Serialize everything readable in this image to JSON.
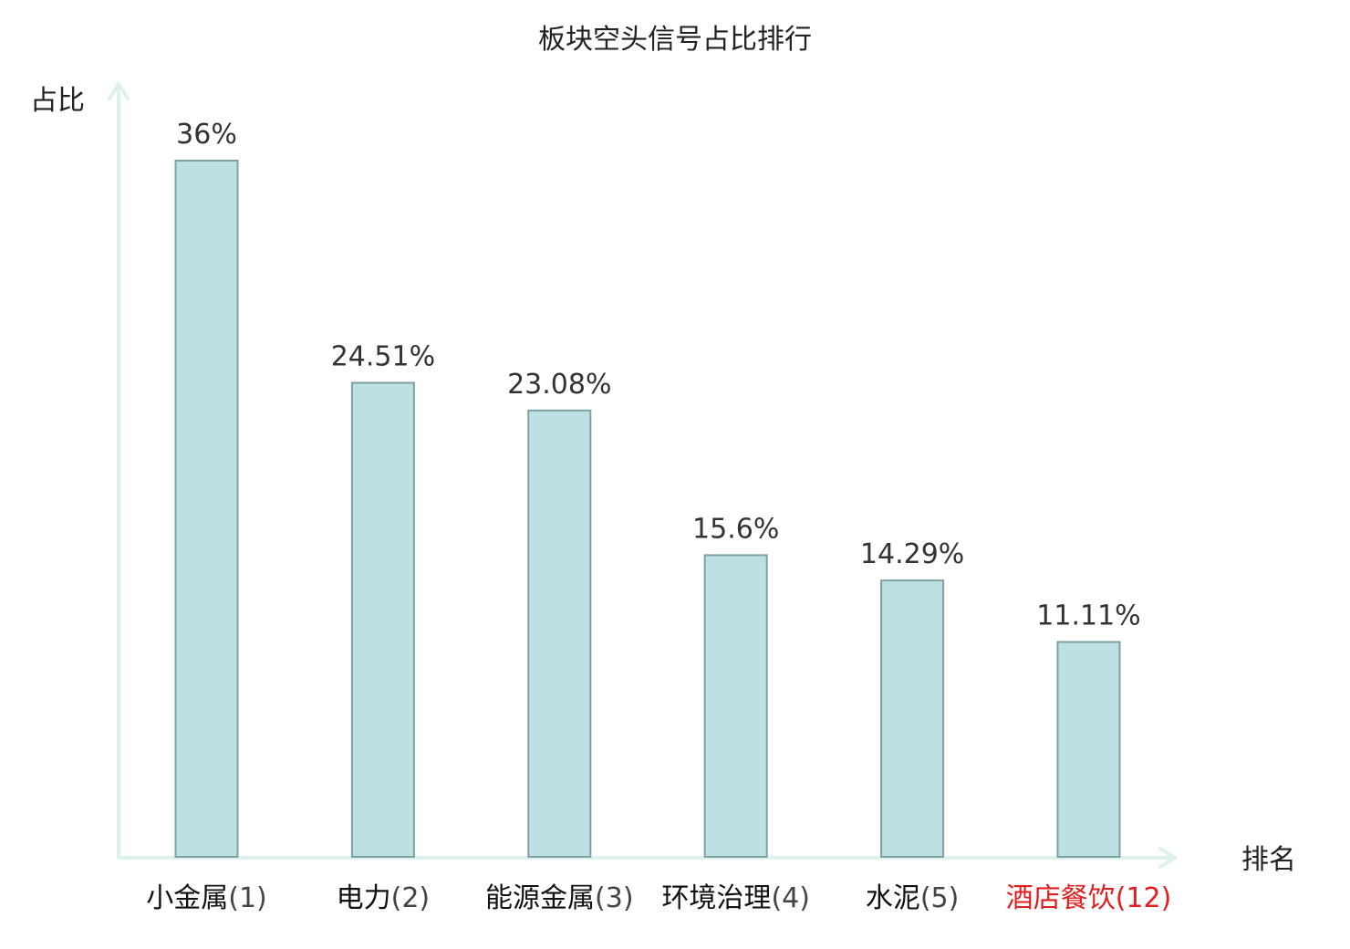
{
  "chart_data": {
    "type": "bar",
    "title": "板块空头信号占比排行",
    "ylabel": "占比",
    "xlabel": "排名",
    "ylim": [
      0,
      40
    ],
    "grid": false,
    "legend": "none",
    "categories": [
      {
        "name": "小金属",
        "rank": "(1)",
        "highlight": false
      },
      {
        "name": "电力",
        "rank": "(2)",
        "highlight": false
      },
      {
        "name": "能源金属",
        "rank": "(3)",
        "highlight": false
      },
      {
        "name": "环境治理",
        "rank": "(4)",
        "highlight": false
      },
      {
        "name": "水泥",
        "rank": "(5)",
        "highlight": false
      },
      {
        "name": "酒店餐饮",
        "rank": "(12)",
        "highlight": true
      }
    ],
    "values": [
      36,
      24.51,
      23.08,
      15.6,
      14.29,
      11.11
    ],
    "value_labels": [
      "36%",
      "24.51%",
      "23.08%",
      "15.6%",
      "14.29%",
      "11.11%"
    ]
  },
  "colors": {
    "bar_fill": "#bde1e3",
    "bar_stroke": "#7fa1a4",
    "axis": "#ddf1ee",
    "highlight_text": "#e02020",
    "normal_text": "#111111",
    "rank_text": "#444444"
  }
}
